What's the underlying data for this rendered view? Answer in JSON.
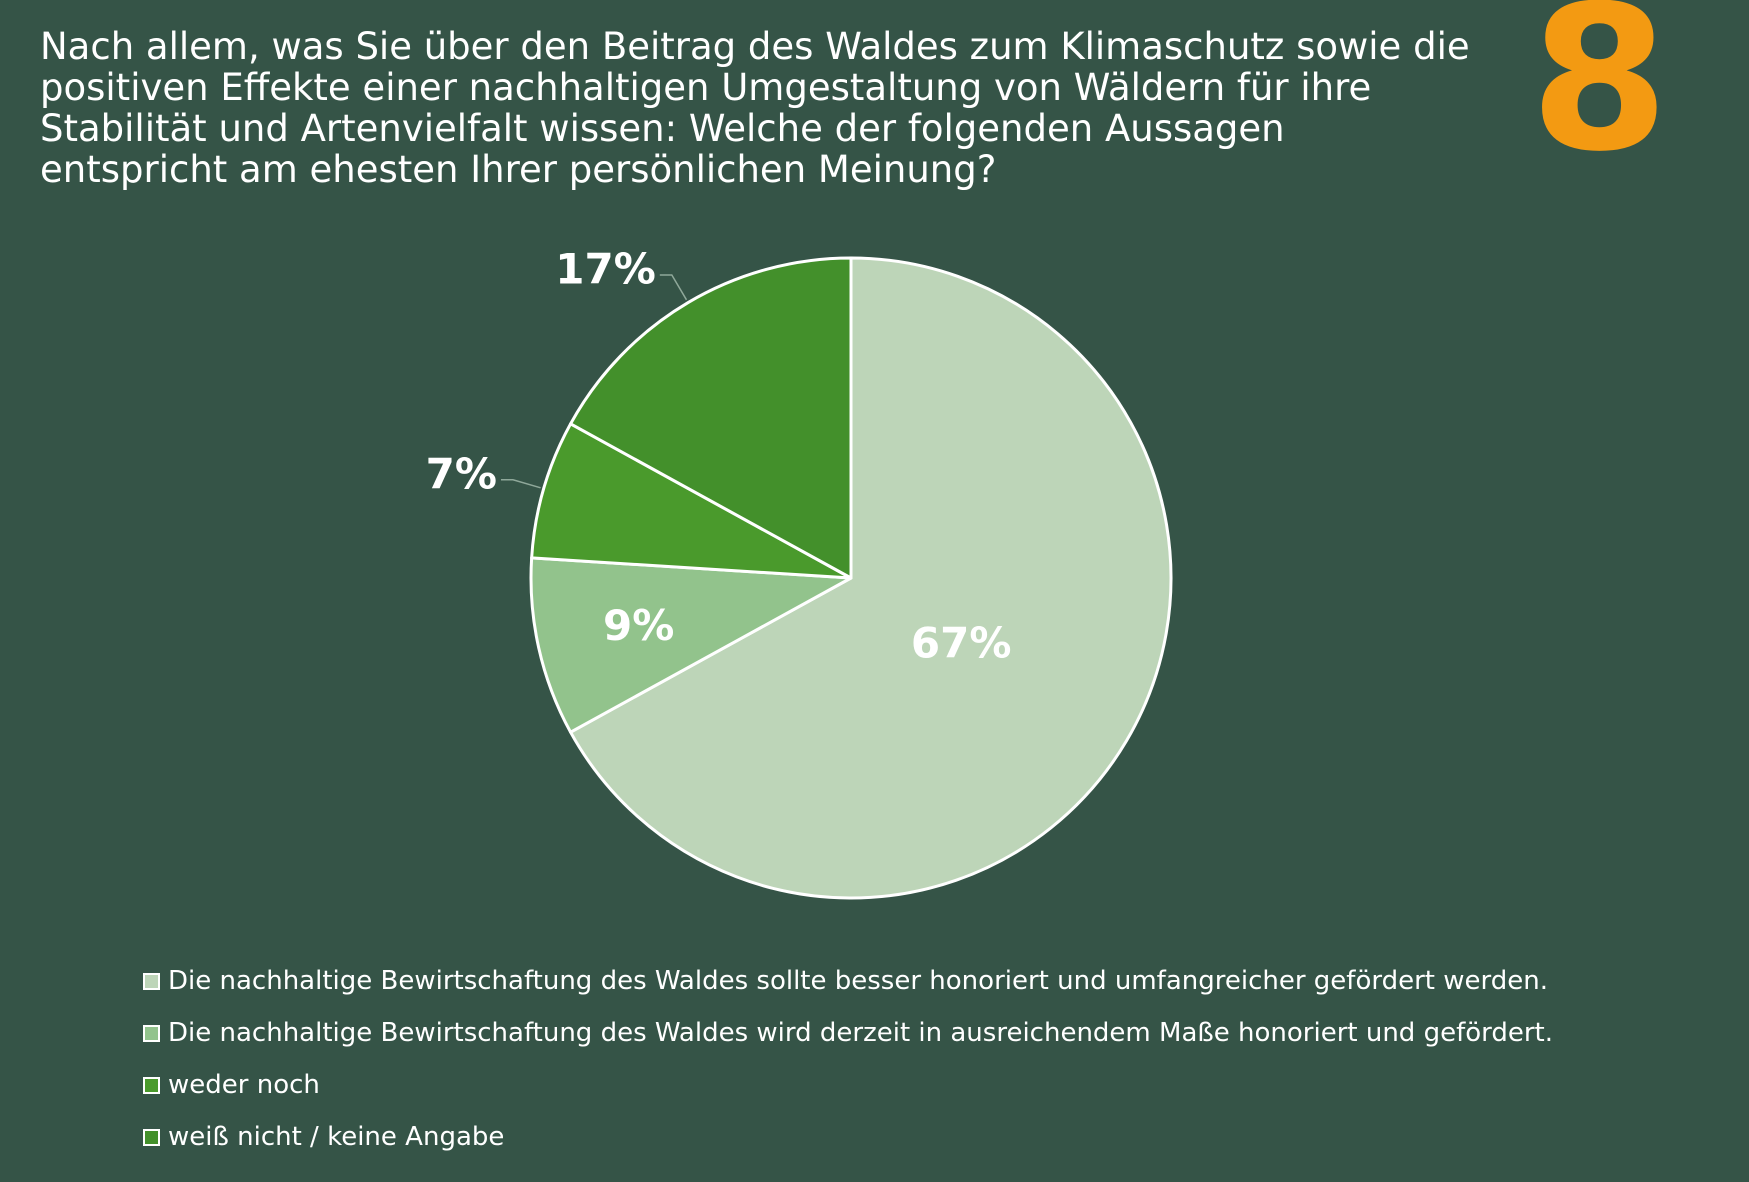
{
  "header": {
    "question": "Nach allem, was Sie über den Beitrag des Waldes zum Klimaschutz sowie die positiven Effekte einer nachhaltigen Umgestaltung von Wäldern für ihre Stabilität und Artenvielfalt wissen: Welche der folgenden Aussagen entspricht am ehesten Ihrer persönlichen Meinung?",
    "slide_number": "8"
  },
  "colors": {
    "background": "#355447",
    "accent": "#f39a12",
    "text": "#ffffff",
    "slice_border": "#ffffff"
  },
  "chart_data": {
    "type": "pie",
    "title": "",
    "start_angle_deg": 0,
    "direction": "clockwise",
    "legend_position": "bottom-left",
    "slices": [
      {
        "label": "Die nachhaltige Bewirtschaftung des Waldes sollte besser honoriert und umfangreicher gefördert werden.",
        "value": 67,
        "value_label": "67%",
        "color": "#bdd5b8",
        "label_placement": "inside"
      },
      {
        "label": "Die nachhaltige Bewirtschaftung des Waldes wird derzeit in ausreichendem Maße honoriert und gefördert.",
        "value": 9,
        "value_label": "9%",
        "color": "#92c38c",
        "label_placement": "inside"
      },
      {
        "label": "weder noch",
        "value": 7,
        "value_label": "7%",
        "color": "#4a9a2c",
        "label_placement": "outside"
      },
      {
        "label": "weiß nicht / keine Angabe",
        "value": 17,
        "value_label": "17%",
        "color": "#43902b",
        "label_placement": "outside"
      }
    ]
  }
}
